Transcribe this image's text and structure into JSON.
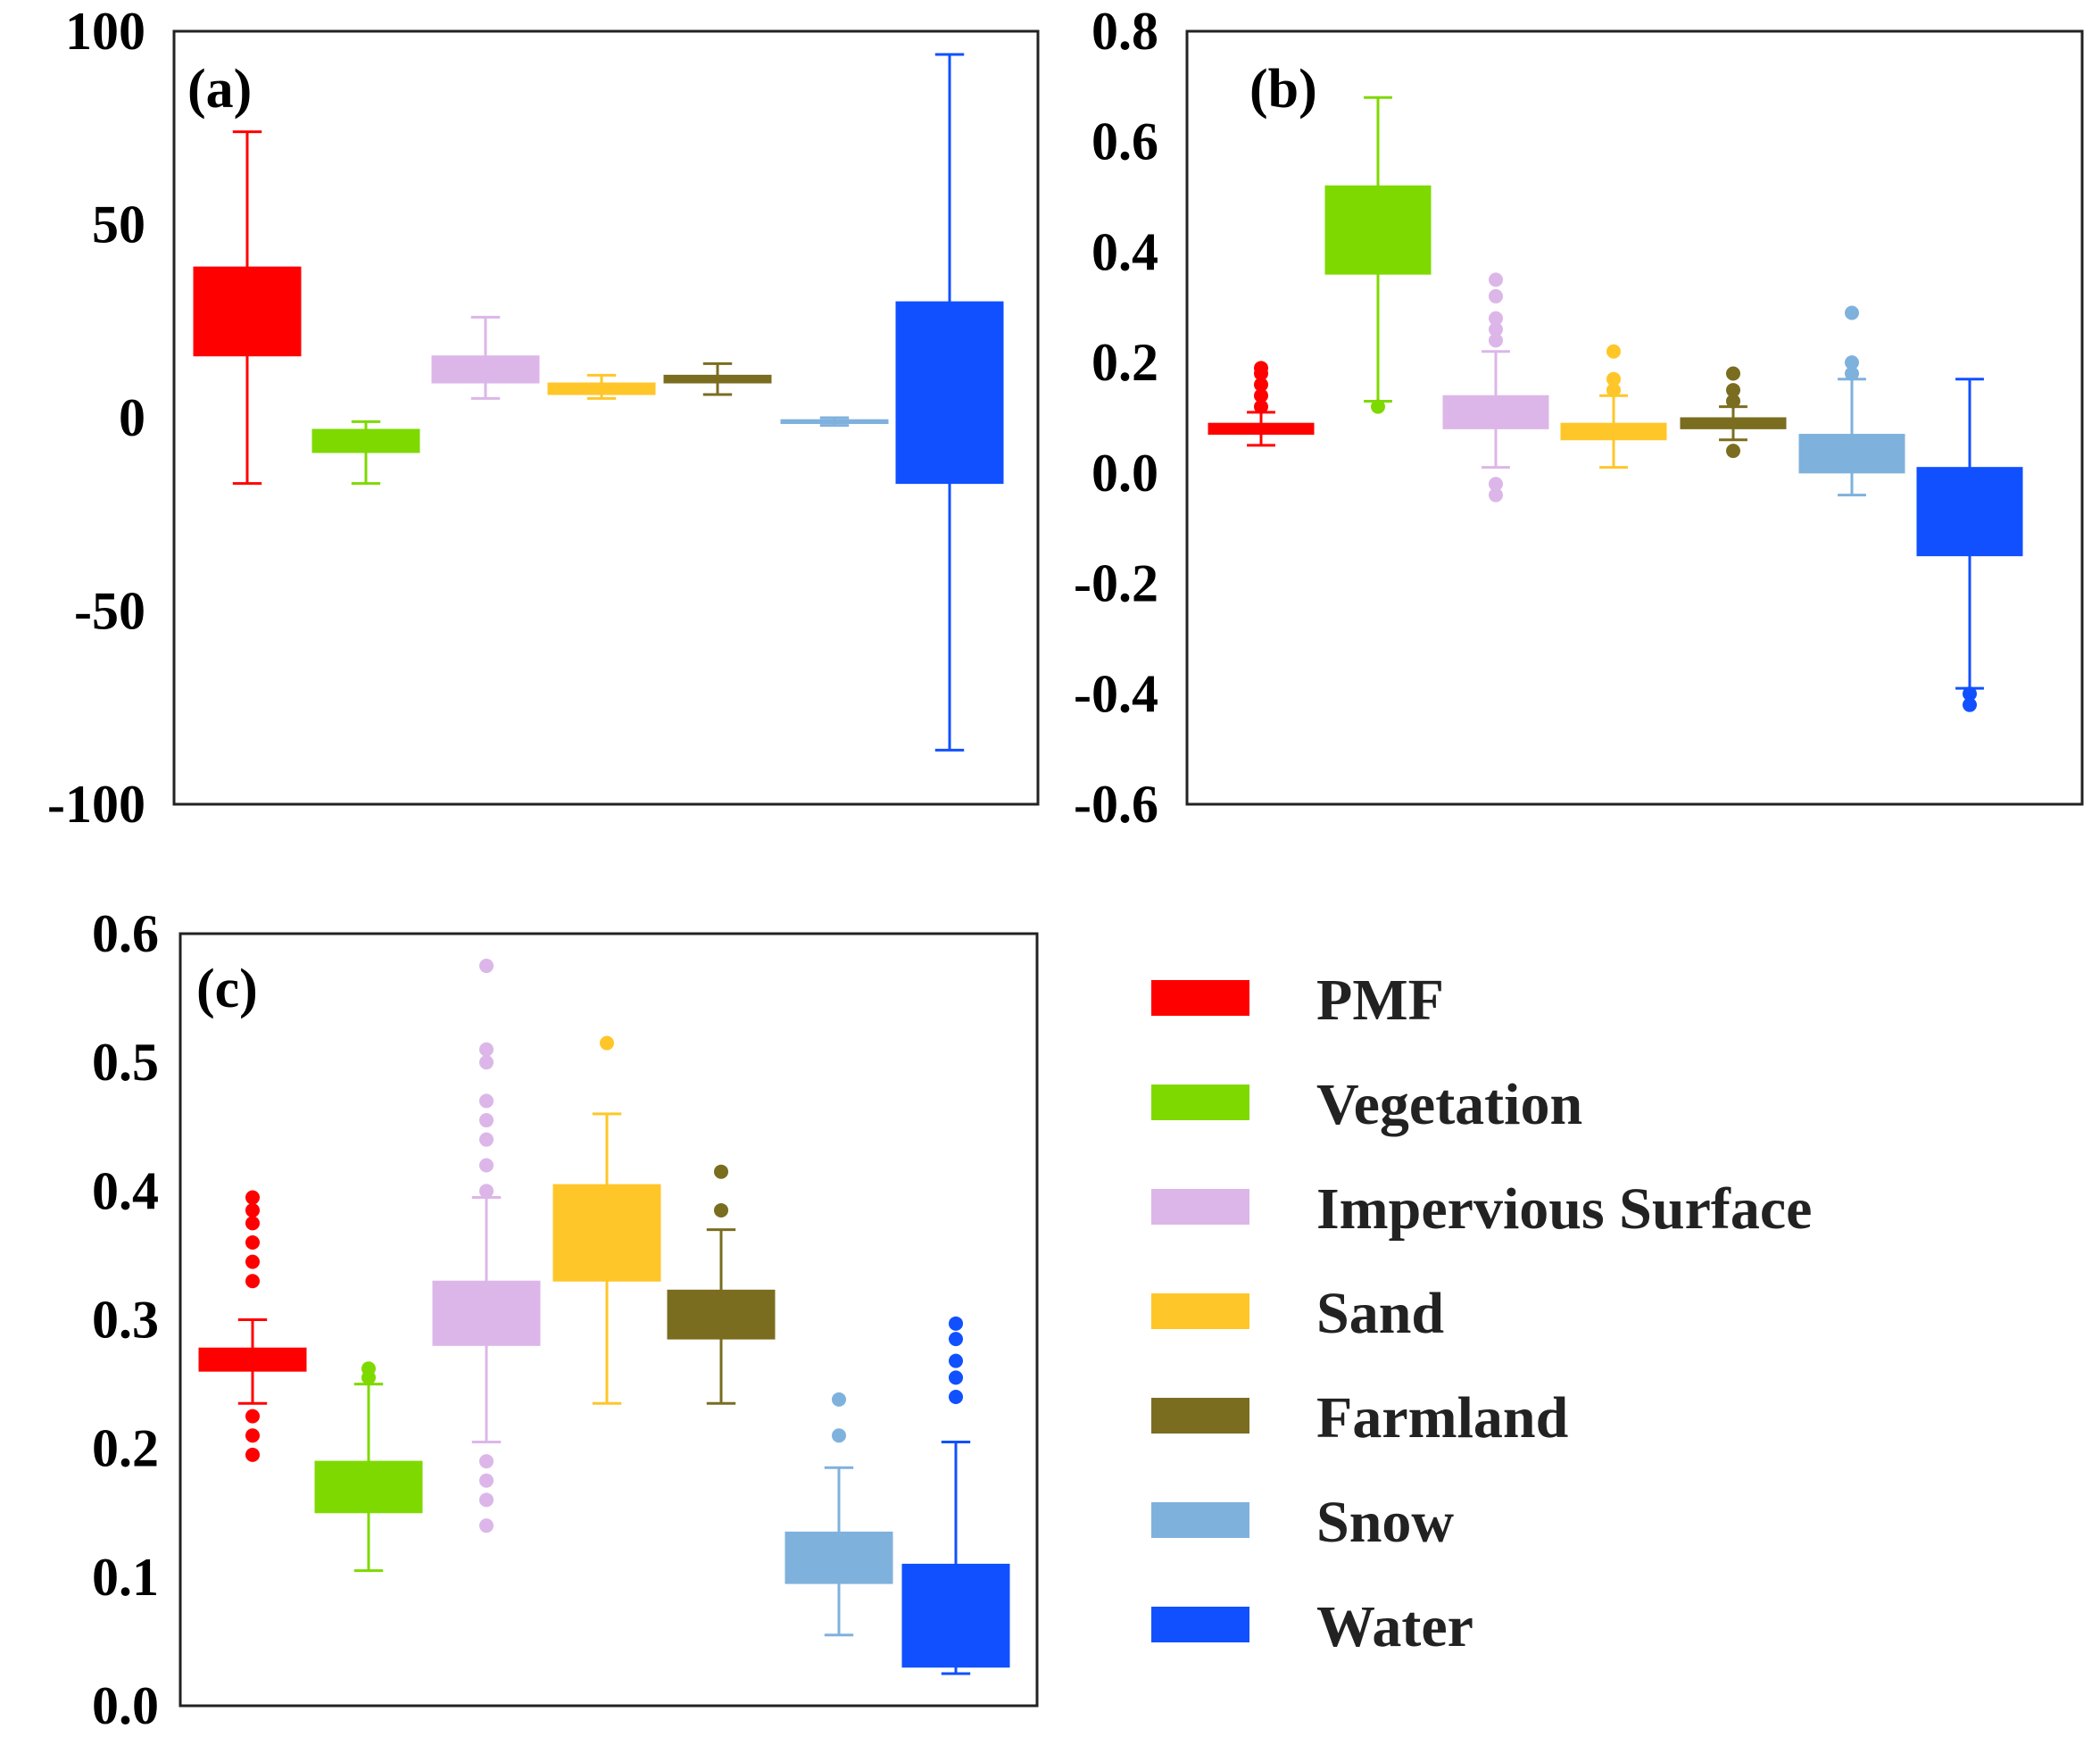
{
  "categories": [
    "PMF",
    "Vegetation",
    "Impervious Surface",
    "Sand",
    "Farmland",
    "Snow",
    "Water"
  ],
  "colors": {
    "PMF": "#ff0000",
    "Vegetation": "#7ed900",
    "Impervious Surface": "#dcb6e9",
    "Sand": "#ffc629",
    "Farmland": "#7a6d20",
    "Snow": "#7fb1dd",
    "Water": "#1150ff"
  },
  "legend": {
    "placement": "bottom-right",
    "items": [
      "PMF",
      "Vegetation",
      "Impervious Surface",
      "Sand",
      "Farmland",
      "Snow",
      "Water"
    ]
  },
  "chart_data": [
    {
      "type": "boxplot",
      "panel_label": "(a)",
      "ylim": [
        -100,
        100
      ],
      "yticks": [
        -100,
        -50,
        0,
        50,
        100
      ],
      "tick_labels": [
        "-100",
        "-50",
        "0",
        "50",
        "100"
      ],
      "xlabel": "",
      "ylabel": "",
      "boxes": [
        {
          "category": "PMF",
          "whislo": -17,
          "q1": 16,
          "q3": 39,
          "whishi": 74,
          "outliers": []
        },
        {
          "category": "Vegetation",
          "whislo": -17,
          "q1": -9,
          "q3": -3,
          "whishi": -1,
          "outliers": []
        },
        {
          "category": "Impervious Surface",
          "whislo": 5,
          "q1": 9,
          "q3": 16,
          "whishi": 26,
          "outliers": []
        },
        {
          "category": "Sand",
          "whislo": 5,
          "q1": 6,
          "q3": 9,
          "whishi": 11,
          "outliers": []
        },
        {
          "category": "Farmland",
          "whislo": 6,
          "q1": 9,
          "q3": 11,
          "whishi": 14,
          "outliers": []
        },
        {
          "category": "Snow",
          "whislo": -2,
          "q1": -1.5,
          "q3": -0.5,
          "whishi": 0,
          "outliers": []
        },
        {
          "category": "Water",
          "whislo": -86,
          "q1": -17,
          "q3": 30,
          "whishi": 94,
          "outliers": []
        }
      ]
    },
    {
      "type": "boxplot",
      "panel_label": "(b)",
      "ylim": [
        -0.6,
        0.8
      ],
      "yticks": [
        -0.6,
        -0.4,
        -0.2,
        0.0,
        0.2,
        0.4,
        0.6,
        0.8
      ],
      "tick_labels": [
        "-0.6",
        "-0.4",
        "-0.2",
        "0.0",
        "0.2",
        "0.4",
        "0.6",
        "0.8"
      ],
      "xlabel": "",
      "ylabel": "",
      "boxes": [
        {
          "category": "PMF",
          "whislo": 0.05,
          "q1": 0.07,
          "q3": 0.09,
          "whishi": 0.11,
          "outliers": [
            0.12,
            0.14,
            0.16,
            0.18,
            0.19
          ]
        },
        {
          "category": "Vegetation",
          "whislo": 0.13,
          "q1": 0.36,
          "q3": 0.52,
          "whishi": 0.68,
          "outliers": [
            0.12
          ]
        },
        {
          "category": "Impervious Surface",
          "whislo": 0.01,
          "q1": 0.08,
          "q3": 0.14,
          "whishi": 0.22,
          "outliers": [
            -0.04,
            -0.02,
            0.24,
            0.26,
            0.28,
            0.32,
            0.35
          ]
        },
        {
          "category": "Sand",
          "whislo": 0.01,
          "q1": 0.06,
          "q3": 0.09,
          "whishi": 0.14,
          "outliers": [
            0.15,
            0.17,
            0.22
          ]
        },
        {
          "category": "Farmland",
          "whislo": 0.06,
          "q1": 0.08,
          "q3": 0.1,
          "whishi": 0.12,
          "outliers": [
            0.04,
            0.13,
            0.15,
            0.18
          ]
        },
        {
          "category": "Snow",
          "whislo": -0.04,
          "q1": 0.0,
          "q3": 0.07,
          "whishi": 0.17,
          "outliers": [
            0.18,
            0.2,
            0.29
          ]
        },
        {
          "category": "Water",
          "whislo": -0.39,
          "q1": -0.15,
          "q3": 0.01,
          "whishi": 0.17,
          "outliers": [
            -0.4,
            -0.42
          ]
        }
      ]
    },
    {
      "type": "boxplot",
      "panel_label": "(c)",
      "ylim": [
        0.0,
        0.6
      ],
      "yticks": [
        0.0,
        0.1,
        0.2,
        0.3,
        0.4,
        0.5,
        0.6
      ],
      "tick_labels": [
        "0.0",
        "0.1",
        "0.2",
        "0.3",
        "0.4",
        "0.5",
        "0.6"
      ],
      "xlabel": "",
      "ylabel": "",
      "boxes": [
        {
          "category": "PMF",
          "whislo": 0.235,
          "q1": 0.26,
          "q3": 0.278,
          "whishi": 0.3,
          "outliers": [
            0.195,
            0.21,
            0.225,
            0.33,
            0.345,
            0.36,
            0.375,
            0.385,
            0.395
          ]
        },
        {
          "category": "Vegetation",
          "whislo": 0.105,
          "q1": 0.15,
          "q3": 0.19,
          "whishi": 0.25,
          "outliers": [
            0.255,
            0.262
          ]
        },
        {
          "category": "Impervious Surface",
          "whislo": 0.205,
          "q1": 0.28,
          "q3": 0.33,
          "whishi": 0.395,
          "outliers": [
            0.14,
            0.16,
            0.175,
            0.19,
            0.4,
            0.42,
            0.44,
            0.455,
            0.47,
            0.5,
            0.51,
            0.575
          ]
        },
        {
          "category": "Sand",
          "whislo": 0.235,
          "q1": 0.33,
          "q3": 0.405,
          "whishi": 0.46,
          "outliers": [
            0.515
          ]
        },
        {
          "category": "Farmland",
          "whislo": 0.235,
          "q1": 0.285,
          "q3": 0.323,
          "whishi": 0.37,
          "outliers": [
            0.385,
            0.415
          ]
        },
        {
          "category": "Snow",
          "whislo": 0.055,
          "q1": 0.095,
          "q3": 0.135,
          "whishi": 0.185,
          "outliers": [
            0.21,
            0.238
          ]
        },
        {
          "category": "Water",
          "whislo": 0.025,
          "q1": 0.03,
          "q3": 0.11,
          "whishi": 0.205,
          "outliers": [
            0.24,
            0.255,
            0.268,
            0.285,
            0.297
          ]
        }
      ]
    }
  ]
}
